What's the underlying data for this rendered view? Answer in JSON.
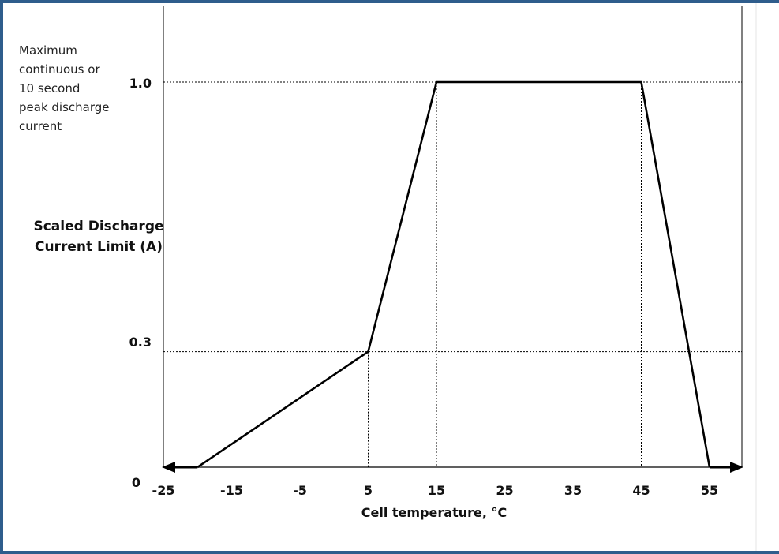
{
  "chart_data": {
    "type": "line",
    "annotation": "Maximum\ncontinuous or\n10 second\npeak discharge\ncurrent",
    "xlabel": "Cell temperature, °C",
    "ylabel": "Scaled Discharge\nCurrent Limit (A)",
    "xlim": [
      -25,
      60
    ],
    "ylim": [
      0,
      1.0
    ],
    "x_ticks": [
      "-25",
      "-15",
      "-5",
      "5",
      "15",
      "25",
      "35",
      "45",
      "55"
    ],
    "y_ticks": [
      "0",
      "0.3",
      "1.0"
    ],
    "series": [
      {
        "x": [
          -20,
          5,
          15,
          45,
          55
        ],
        "y": [
          0,
          0.3,
          1.0,
          1.0,
          0
        ]
      }
    ],
    "arrows": [
      "left",
      "right"
    ],
    "reference_lines": {
      "vertical_x": [
        5,
        15,
        45
      ],
      "horizontal_y": [
        0.3,
        1.0
      ]
    }
  },
  "colors": {
    "border": "#2f5d8c",
    "line": "#000000",
    "text": "#111111"
  }
}
